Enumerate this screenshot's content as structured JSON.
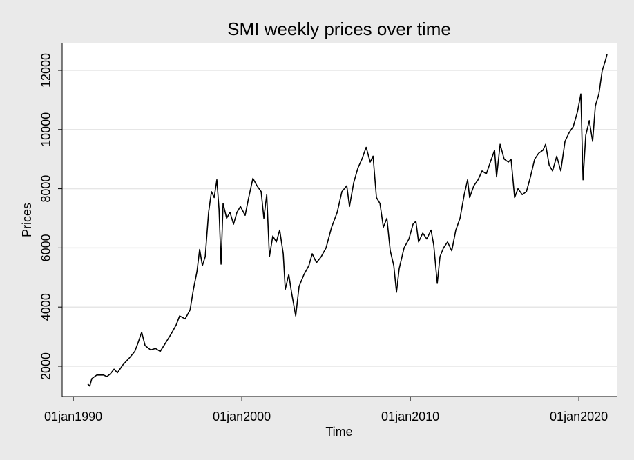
{
  "chart_data": {
    "type": "line",
    "title": "SMI weekly prices over time",
    "x_label": "Time",
    "y_label": "Prices",
    "color": "#000000",
    "grid": true,
    "xlim": [
      1989.34,
      2022.25
    ],
    "ylim": [
      974,
      12909
    ],
    "xticks": [
      {
        "value": 1990,
        "label": "01jan1990"
      },
      {
        "value": 2000,
        "label": "01jan2000"
      },
      {
        "value": 2010,
        "label": "01jan2010"
      },
      {
        "value": 2020,
        "label": "01jan2020"
      }
    ],
    "yticks": [
      2000,
      4000,
      6000,
      8000,
      10000,
      12000
    ],
    "x": [
      1990.86,
      1990.98,
      1991.1,
      1991.39,
      1991.8,
      1992.0,
      1992.2,
      1992.42,
      1992.62,
      1992.95,
      1993.36,
      1993.65,
      1993.85,
      1994.06,
      1994.26,
      1994.59,
      1994.88,
      1995.16,
      1995.49,
      1995.82,
      1996.11,
      1996.31,
      1996.64,
      1996.93,
      1997.13,
      1997.34,
      1997.5,
      1997.66,
      1997.83,
      1998.03,
      1998.2,
      1998.36,
      1998.52,
      1998.65,
      1998.77,
      1998.89,
      1999.1,
      1999.3,
      1999.51,
      1999.71,
      1999.92,
      2000.2,
      2000.41,
      2000.66,
      2000.9,
      2001.15,
      2001.31,
      2001.48,
      2001.64,
      2001.84,
      2002.05,
      2002.25,
      2002.46,
      2002.58,
      2002.79,
      2002.95,
      2003.2,
      2003.4,
      2003.69,
      2003.98,
      2004.18,
      2004.43,
      2004.71,
      2005.0,
      2005.33,
      2005.66,
      2005.94,
      2006.23,
      2006.39,
      2006.64,
      2006.89,
      2007.13,
      2007.38,
      2007.62,
      2007.79,
      2007.99,
      2008.2,
      2008.4,
      2008.61,
      2008.81,
      2009.02,
      2009.18,
      2009.34,
      2009.63,
      2009.92,
      2010.16,
      2010.33,
      2010.49,
      2010.74,
      2010.98,
      2011.23,
      2011.39,
      2011.6,
      2011.76,
      2011.97,
      2012.21,
      2012.46,
      2012.7,
      2012.95,
      2013.2,
      2013.4,
      2013.52,
      2013.77,
      2014.02,
      2014.26,
      2014.51,
      2014.75,
      2015.0,
      2015.12,
      2015.33,
      2015.57,
      2015.82,
      2015.98,
      2016.19,
      2016.39,
      2016.64,
      2016.89,
      2017.13,
      2017.38,
      2017.62,
      2017.87,
      2018.03,
      2018.24,
      2018.44,
      2018.69,
      2018.93,
      2019.18,
      2019.43,
      2019.67,
      2019.92,
      2020.12,
      2020.25,
      2020.41,
      2020.62,
      2020.82,
      2020.98,
      2021.19,
      2021.39,
      2021.56,
      2021.68
    ],
    "values": [
      1400,
      1330,
      1580,
      1700,
      1700,
      1650,
      1740,
      1900,
      1780,
      2050,
      2300,
      2500,
      2800,
      3150,
      2700,
      2550,
      2600,
      2500,
      2800,
      3100,
      3400,
      3700,
      3600,
      3900,
      4600,
      5200,
      5950,
      5400,
      5700,
      7200,
      7900,
      7700,
      8300,
      7300,
      5450,
      7500,
      7000,
      7200,
      6800,
      7200,
      7400,
      7100,
      7700,
      8350,
      8100,
      7900,
      7000,
      7800,
      5700,
      6400,
      6200,
      6600,
      5800,
      4600,
      5100,
      4500,
      3700,
      4700,
      5100,
      5400,
      5800,
      5500,
      5700,
      6000,
      6700,
      7200,
      7900,
      8100,
      7400,
      8200,
      8700,
      9000,
      9400,
      8900,
      9100,
      7700,
      7500,
      6700,
      7000,
      5900,
      5400,
      4500,
      5300,
      6000,
      6300,
      6800,
      6900,
      6200,
      6500,
      6300,
      6600,
      6100,
      4800,
      5700,
      6000,
      6200,
      5900,
      6600,
      7000,
      7800,
      8300,
      7700,
      8100,
      8300,
      8600,
      8500,
      8900,
      9300,
      8400,
      9500,
      9000,
      8900,
      9000,
      7700,
      8000,
      7800,
      7900,
      8400,
      9000,
      9200,
      9300,
      9500,
      8800,
      8600,
      9100,
      8600,
      9600,
      9900,
      10100,
      10600,
      11200,
      8300,
      9800,
      10300,
      9600,
      10800,
      11200,
      12000,
      12300,
      12550
    ]
  }
}
